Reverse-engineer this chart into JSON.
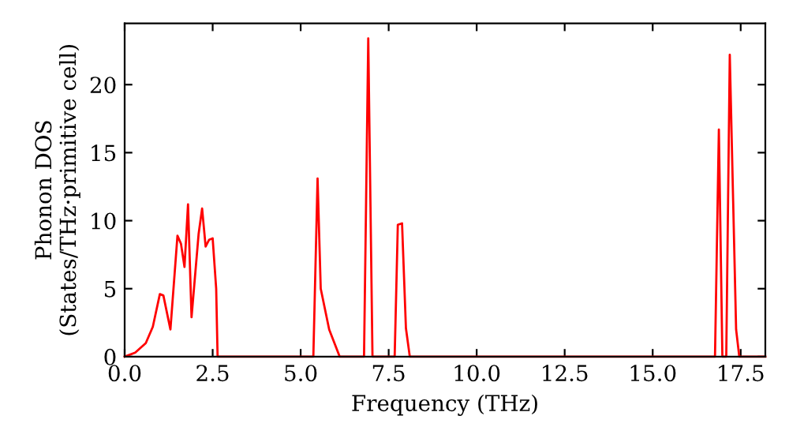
{
  "chart_data": {
    "type": "line",
    "xlabel": "Frequency (THz)",
    "ylabel": "Phonon DOS\n(States/THz·primitive cell)",
    "x": [
      0,
      0.3,
      0.6,
      0.8,
      1.0,
      1.1,
      1.3,
      1.5,
      1.6,
      1.7,
      1.8,
      1.9,
      2.1,
      2.2,
      2.3,
      2.4,
      2.5,
      2.6,
      2.64,
      5.36,
      5.48,
      5.57,
      5.81,
      6.11,
      6.8,
      6.92,
      7.04,
      7.67,
      7.76,
      7.88,
      7.99,
      8.1,
      16.77,
      16.88,
      16.98,
      17.09,
      17.19,
      17.37,
      17.46,
      18.2
    ],
    "series": [
      {
        "color": "#ff0000",
        "values": [
          0,
          0.3,
          1.0,
          2.2,
          4.6,
          4.5,
          2.0,
          8.9,
          8.3,
          6.6,
          11.2,
          2.9,
          9.0,
          10.9,
          8.1,
          8.6,
          8.7,
          5.0,
          0,
          0,
          13.1,
          5.0,
          2.0,
          0,
          0,
          23.4,
          0,
          0,
          9.7,
          9.8,
          2.1,
          0,
          0,
          16.7,
          0,
          0,
          22.2,
          2.0,
          0,
          0
        ]
      }
    ],
    "xlim": [
      0,
      18.2
    ],
    "ylim": [
      0,
      24.5
    ],
    "xticks": [
      {
        "value": 0,
        "label": "0.0"
      },
      {
        "value": 2.5,
        "label": "2.5"
      },
      {
        "value": 5,
        "label": "5.0"
      },
      {
        "value": 7.5,
        "label": "7.5"
      },
      {
        "value": 10,
        "label": "10.0"
      },
      {
        "value": 12.5,
        "label": "12.5"
      },
      {
        "value": 15,
        "label": "15.0"
      },
      {
        "value": 17.5,
        "label": "17.5"
      }
    ],
    "yticks": [
      0,
      5,
      10,
      15,
      20
    ],
    "grid": false,
    "legend": false,
    "marker": "none",
    "line_style": "solid"
  }
}
